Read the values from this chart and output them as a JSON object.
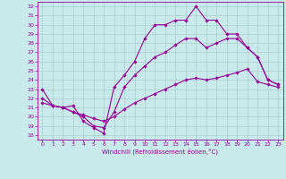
{
  "xlabel": "Windchill (Refroidissement éolien,°C)",
  "bg_color": "#c8eaea",
  "line_color": "#990099",
  "grid_color": "#aacccc",
  "xlim": [
    -0.5,
    23.5
  ],
  "ylim": [
    17.5,
    32.5
  ],
  "yticks": [
    18,
    19,
    20,
    21,
    22,
    23,
    24,
    25,
    26,
    27,
    28,
    29,
    30,
    31,
    32
  ],
  "xticks": [
    0,
    1,
    2,
    3,
    4,
    5,
    6,
    7,
    8,
    9,
    10,
    11,
    12,
    13,
    14,
    15,
    16,
    17,
    18,
    19,
    20,
    21,
    22,
    23
  ],
  "line1_x": [
    0,
    1,
    2,
    3,
    4,
    5,
    6,
    7,
    8,
    9,
    10,
    11,
    12,
    13,
    14,
    15,
    16,
    17,
    18,
    19,
    20,
    21,
    22,
    23
  ],
  "line1_y": [
    23.0,
    21.2,
    21.0,
    21.2,
    19.5,
    18.8,
    18.2,
    23.2,
    24.5,
    26.0,
    28.5,
    30.0,
    30.0,
    30.5,
    30.5,
    32.0,
    30.5,
    30.5,
    29.0,
    29.0,
    27.5,
    26.5,
    24.0,
    23.5
  ],
  "line2_x": [
    0,
    1,
    2,
    3,
    4,
    5,
    6,
    7,
    8,
    9,
    10,
    11,
    12,
    13,
    14,
    15,
    16,
    17,
    18,
    19,
    20,
    21,
    22,
    23
  ],
  "line2_y": [
    22.0,
    21.2,
    21.0,
    20.5,
    20.0,
    19.0,
    18.8,
    20.5,
    23.2,
    24.5,
    25.5,
    26.5,
    27.0,
    27.8,
    28.5,
    28.5,
    27.5,
    28.0,
    28.5,
    28.5,
    27.5,
    26.5,
    24.0,
    23.5
  ],
  "line3_x": [
    0,
    1,
    2,
    3,
    4,
    5,
    6,
    7,
    8,
    9,
    10,
    11,
    12,
    13,
    14,
    15,
    16,
    17,
    18,
    19,
    20,
    21,
    22,
    23
  ],
  "line3_y": [
    21.5,
    21.2,
    21.0,
    20.5,
    20.2,
    19.8,
    19.5,
    20.0,
    20.8,
    21.5,
    22.0,
    22.5,
    23.0,
    23.5,
    24.0,
    24.2,
    24.0,
    24.2,
    24.5,
    24.8,
    25.2,
    23.8,
    23.5,
    23.2
  ]
}
